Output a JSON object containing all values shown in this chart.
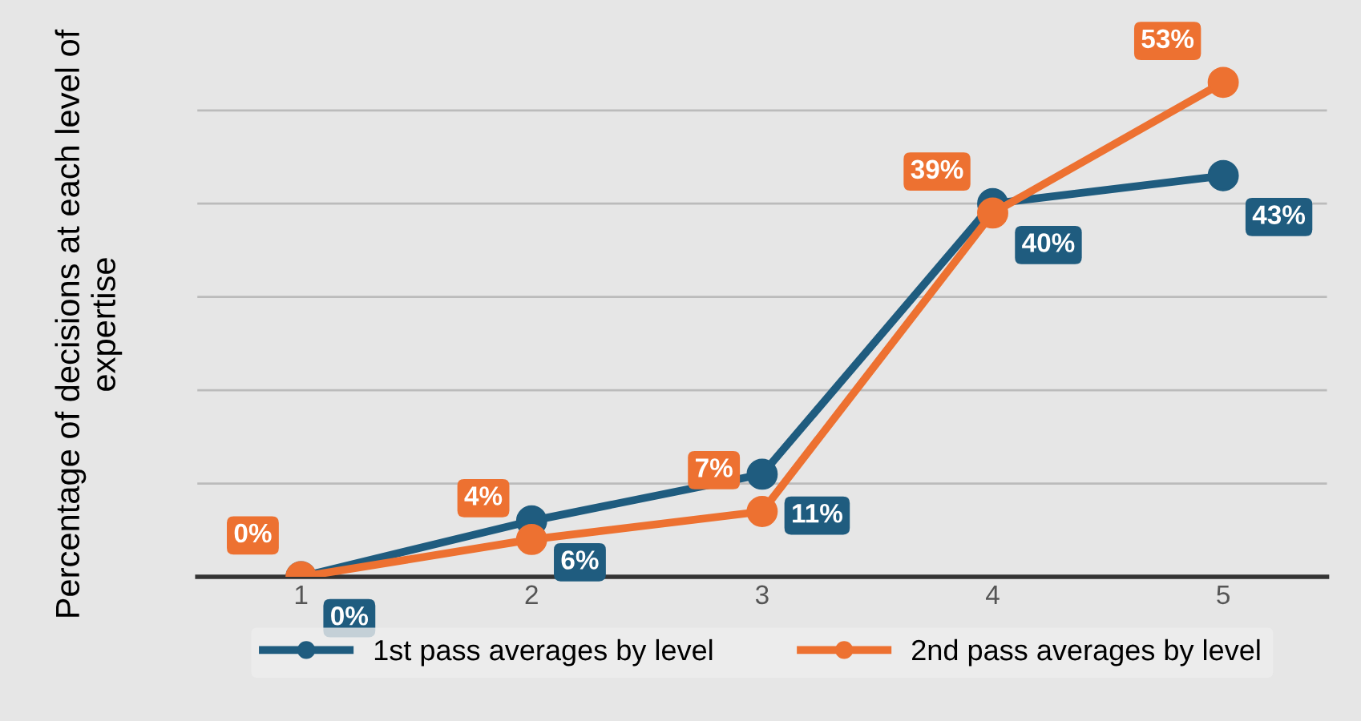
{
  "chart_data": {
    "type": "line",
    "ylabel": "Percentage of decisions at each level of expertise",
    "categories": [
      "1",
      "2",
      "3",
      "4",
      "5"
    ],
    "series": [
      {
        "name": "1st pass averages by level",
        "color": "#1f5c7f",
        "values": [
          0,
          6,
          11,
          40,
          43
        ],
        "value_labels": [
          "0%",
          "6%",
          "11%",
          "40%",
          "43%"
        ]
      },
      {
        "name": "2nd pass averages by level",
        "color": "#ed7131",
        "values": [
          0,
          4,
          7,
          39,
          53
        ],
        "value_labels": [
          "0%",
          "4%",
          "7%",
          "39%",
          "53%"
        ]
      }
    ],
    "marker": "circle",
    "line_style": "solid",
    "grid": "y",
    "legend": "bottom"
  }
}
